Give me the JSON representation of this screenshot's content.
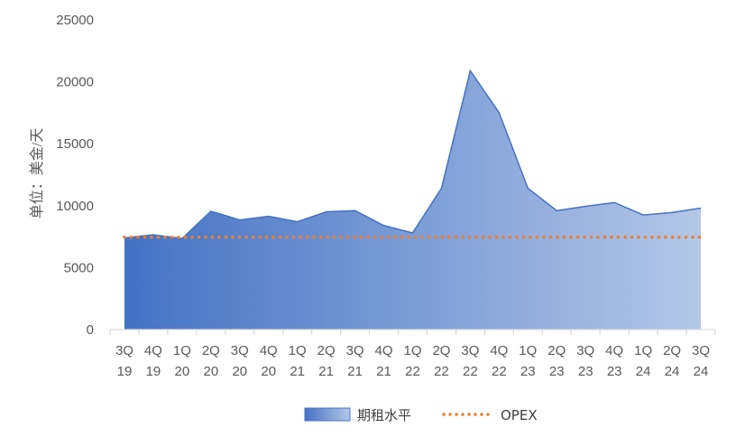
{
  "chart_data": {
    "type": "area",
    "categories": [
      "3Q\n19",
      "4Q\n19",
      "1Q\n20",
      "2Q\n20",
      "3Q\n20",
      "4Q\n20",
      "1Q\n21",
      "2Q\n21",
      "3Q\n21",
      "4Q\n21",
      "1Q\n22",
      "2Q\n22",
      "3Q\n22",
      "4Q\n22",
      "1Q\n23",
      "2Q\n23",
      "3Q\n23",
      "4Q\n23",
      "1Q\n24",
      "2Q\n24",
      "3Q\n24"
    ],
    "series": [
      {
        "name": "期租水平",
        "type": "area",
        "color": "#4472C4",
        "color_end": "#B4C7E7",
        "values": [
          7400,
          7650,
          7350,
          9550,
          8850,
          9150,
          8700,
          9500,
          9600,
          8400,
          7800,
          11400,
          20900,
          17500,
          11400,
          9600,
          9950,
          10250,
          9250,
          9450,
          9800
        ]
      },
      {
        "name": "OPEX",
        "type": "line",
        "style": "dotted",
        "color": "#ED7D31",
        "values": [
          7450,
          7450,
          7450,
          7450,
          7450,
          7450,
          7450,
          7450,
          7450,
          7450,
          7450,
          7450,
          7450,
          7450,
          7450,
          7450,
          7450,
          7450,
          7450,
          7450,
          7450
        ]
      }
    ],
    "ylabel": "单位：美金/天",
    "ylim": [
      0,
      25000
    ],
    "yticks": [
      0,
      5000,
      10000,
      15000,
      20000,
      25000
    ],
    "grid": false,
    "legend_position": "bottom"
  }
}
